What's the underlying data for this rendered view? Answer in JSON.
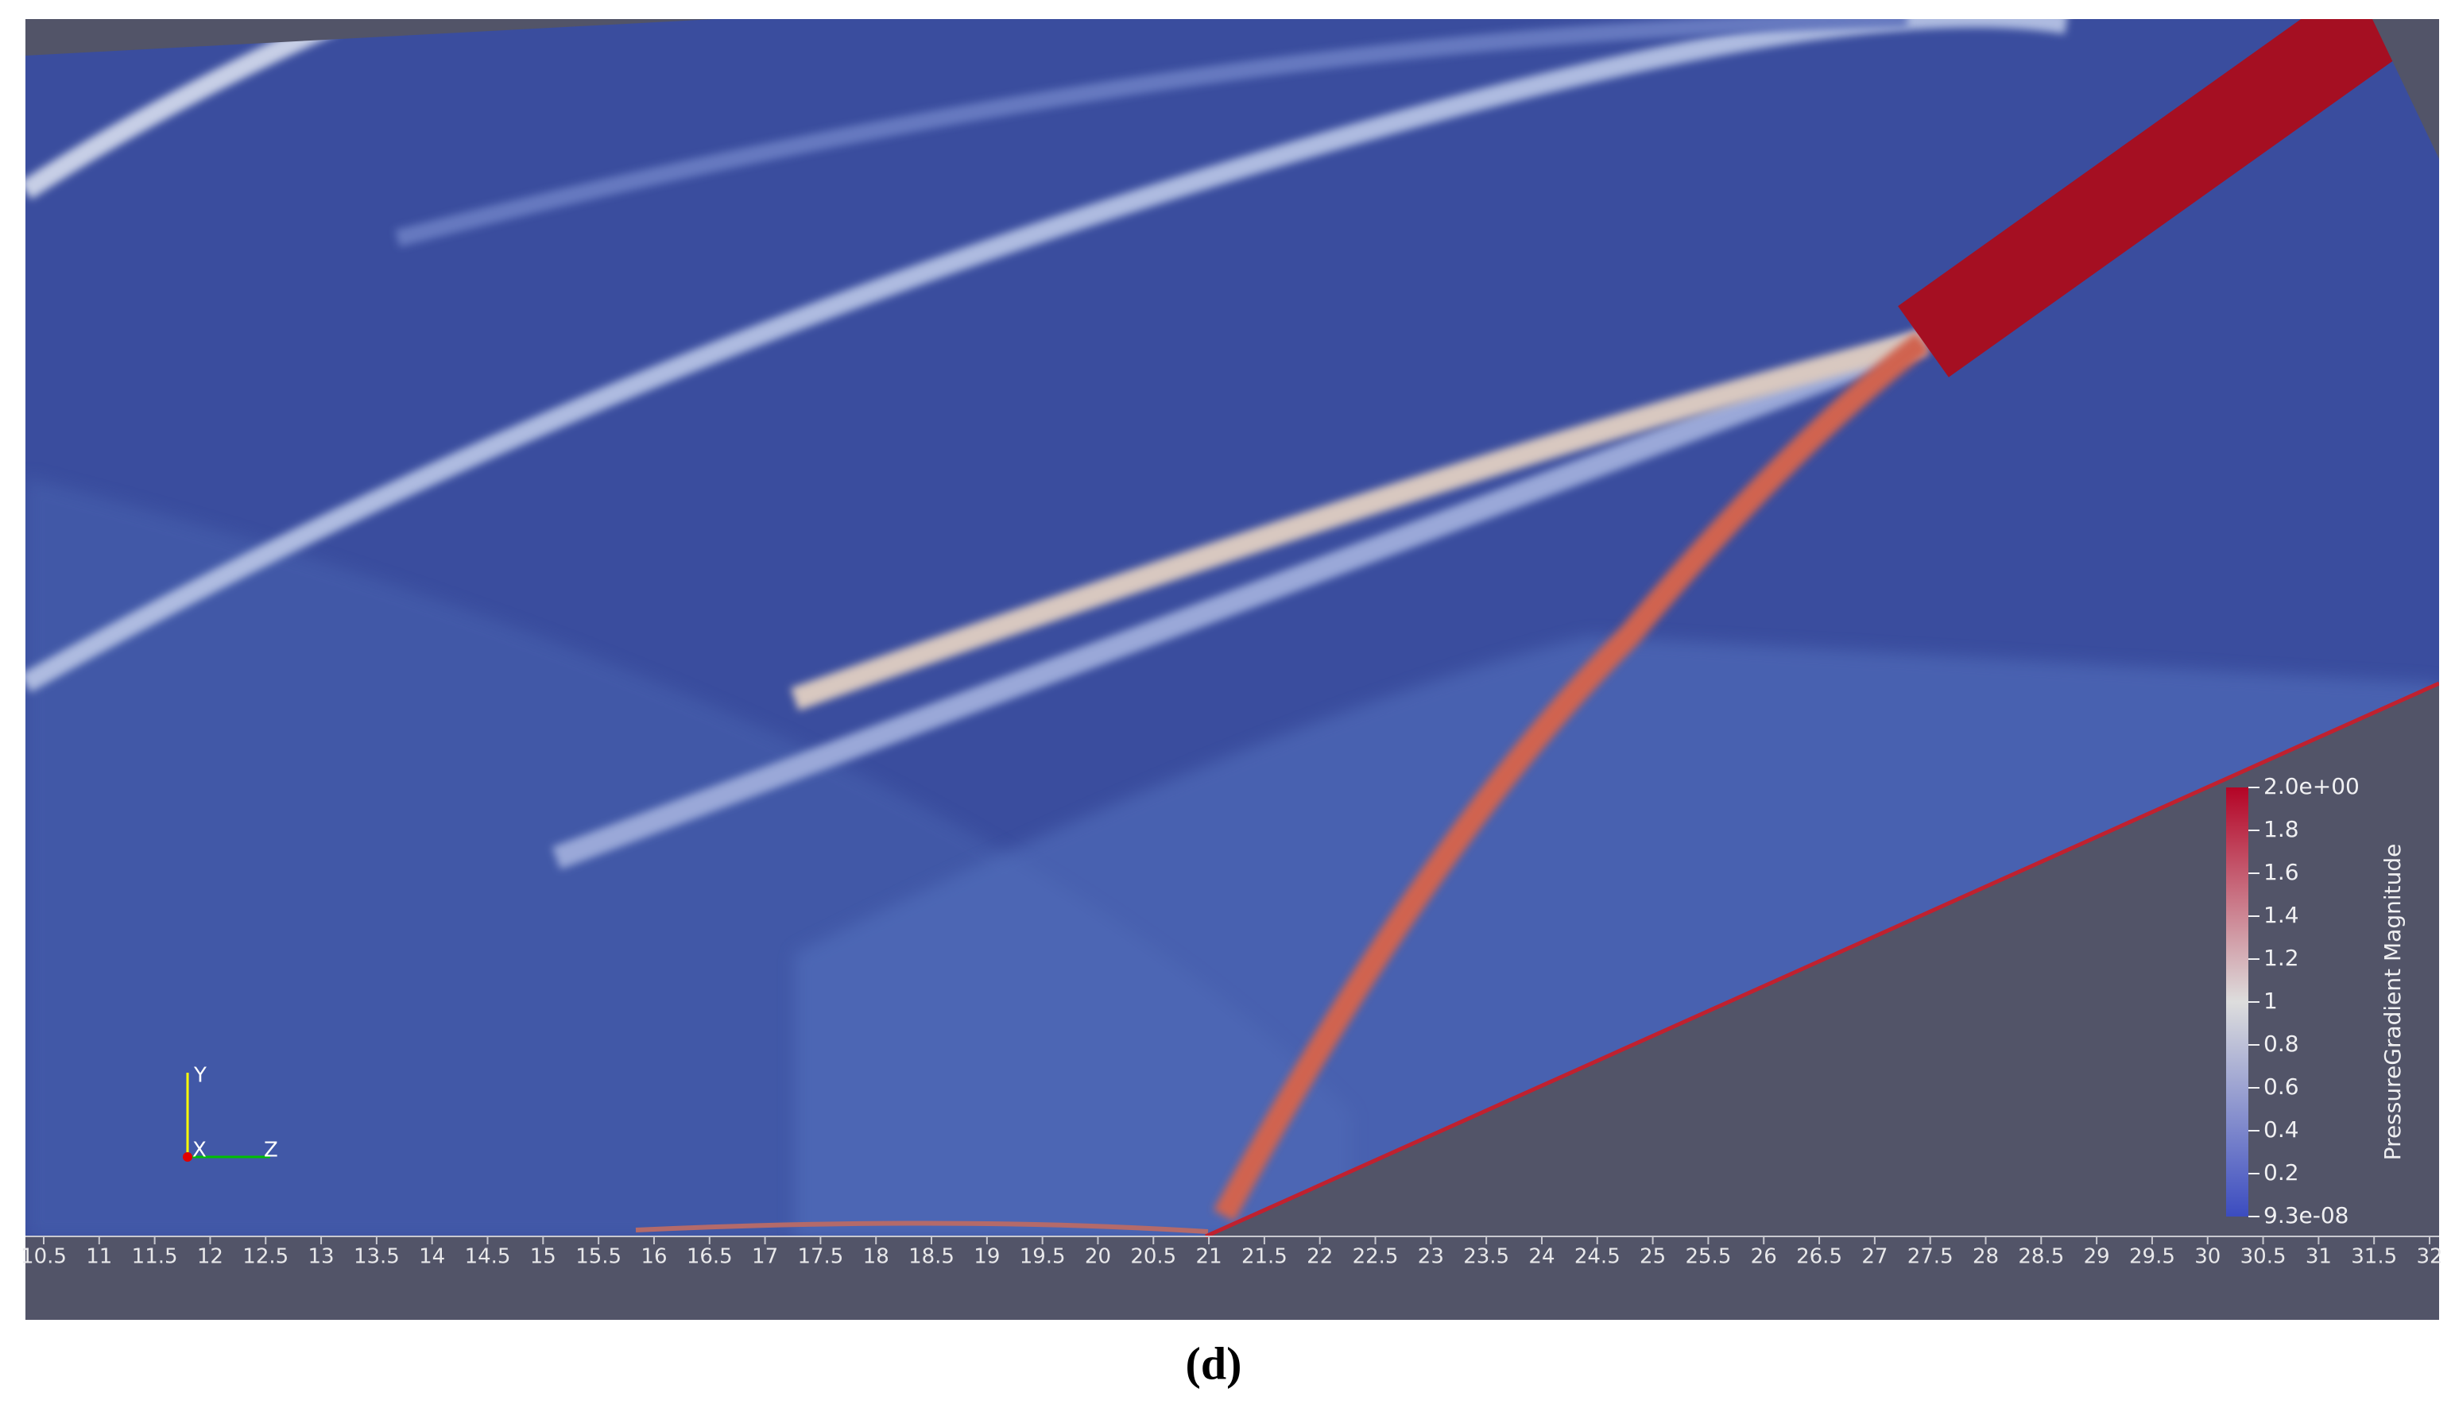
{
  "chart_data": {
    "type": "contour",
    "xlim": [
      10.5,
      32
    ],
    "xticks": [
      10.5,
      11,
      11.5,
      12,
      12.5,
      13,
      13.5,
      14,
      14.5,
      15,
      15.5,
      16,
      16.5,
      17,
      17.5,
      18,
      18.5,
      19,
      19.5,
      20,
      20.5,
      21,
      21.5,
      22,
      22.5,
      23,
      23.5,
      24,
      24.5,
      25,
      25.5,
      26,
      26.5,
      27,
      27.5,
      28,
      28.5,
      29,
      29.5,
      30,
      30.5,
      31,
      31.5,
      32
    ],
    "colorbar": {
      "title": "PressureGradient Magnitude",
      "clim": [
        9.3e-08,
        2
      ],
      "ticks": [
        {
          "value": 2,
          "label": "2.0e+00"
        },
        1.8,
        1.6,
        1.4,
        1.2,
        1,
        0.8,
        0.6,
        0.4,
        0.2,
        {
          "value": 9.3e-08,
          "label": "9.3e-08"
        }
      ],
      "colors": [
        "#3b4cc0",
        "#dddddd",
        "#b40426"
      ]
    },
    "axes_triad": {
      "y": "Y",
      "x": "X",
      "z": "Z"
    },
    "caption": "(d)"
  }
}
